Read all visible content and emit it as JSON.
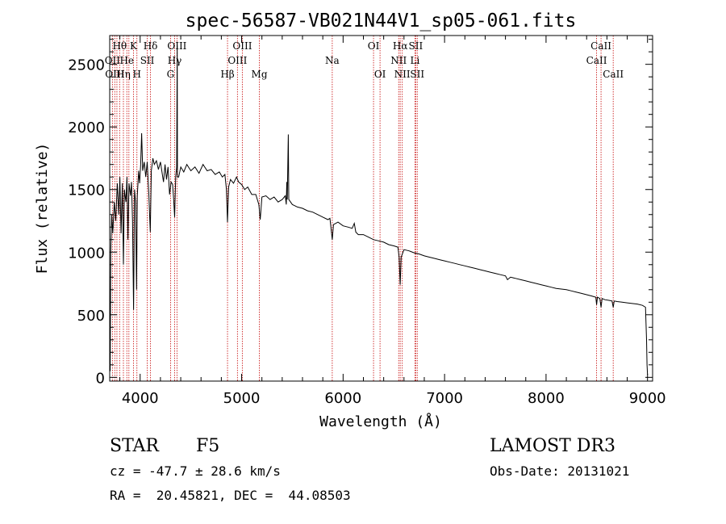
{
  "chart_data": {
    "type": "line",
    "title": "spec-56587-VB021N44V1_sp05-061.fits",
    "xlabel": "Wavelength (Å)",
    "ylabel": "Flux (relative)",
    "xlim": [
      3700,
      9050
    ],
    "ylim": [
      -30,
      2730
    ],
    "xticks": [
      {
        "value": 4000,
        "label": "4000"
      },
      {
        "value": 5000,
        "label": "5000"
      },
      {
        "value": 6000,
        "label": "6000"
      },
      {
        "value": 7000,
        "label": "7000"
      },
      {
        "value": 8000,
        "label": "8000"
      },
      {
        "value": 9000,
        "label": "9000"
      }
    ],
    "yticks": [
      {
        "value": 0,
        "label": "0"
      },
      {
        "value": 500,
        "label": "500"
      },
      {
        "value": 1000,
        "label": "1000"
      },
      {
        "value": 1500,
        "label": "1500"
      },
      {
        "value": 2000,
        "label": "2000"
      },
      {
        "value": 2500,
        "label": "2500"
      }
    ],
    "series": [
      {
        "name": "spectrum",
        "points": [
          [
            3700,
            150
          ],
          [
            3705,
            50
          ],
          [
            3710,
            1000
          ],
          [
            3720,
            1300
          ],
          [
            3730,
            1150
          ],
          [
            3745,
            1400
          ],
          [
            3760,
            1250
          ],
          [
            3775,
            1550
          ],
          [
            3790,
            1300
          ],
          [
            3800,
            1600
          ],
          [
            3812,
            1150
          ],
          [
            3825,
            1550
          ],
          [
            3835,
            900
          ],
          [
            3845,
            1500
          ],
          [
            3860,
            1400
          ],
          [
            3870,
            1600
          ],
          [
            3880,
            1100
          ],
          [
            3890,
            1550
          ],
          [
            3905,
            1450
          ],
          [
            3915,
            1560
          ],
          [
            3925,
            1250
          ],
          [
            3935,
            540
          ],
          [
            3945,
            1500
          ],
          [
            3955,
            1400
          ],
          [
            3965,
            700
          ],
          [
            3972,
            1450
          ],
          [
            3985,
            1650
          ],
          [
            3995,
            1550
          ],
          [
            4005,
            1700
          ],
          [
            4015,
            1950
          ],
          [
            4025,
            1650
          ],
          [
            4040,
            1720
          ],
          [
            4055,
            1600
          ],
          [
            4070,
            1720
          ],
          [
            4085,
            1480
          ],
          [
            4100,
            1160
          ],
          [
            4110,
            1650
          ],
          [
            4125,
            1750
          ],
          [
            4140,
            1700
          ],
          [
            4160,
            1730
          ],
          [
            4180,
            1660
          ],
          [
            4200,
            1720
          ],
          [
            4215,
            1640
          ],
          [
            4230,
            1560
          ],
          [
            4245,
            1700
          ],
          [
            4260,
            1580
          ],
          [
            4275,
            1680
          ],
          [
            4290,
            1460
          ],
          [
            4305,
            1560
          ],
          [
            4320,
            1540
          ],
          [
            4330,
            1420
          ],
          [
            4340,
            1280
          ],
          [
            4350,
            1600
          ],
          [
            4360,
            1680
          ],
          [
            4365,
            2650
          ],
          [
            4368,
            1600
          ],
          [
            4380,
            1600
          ],
          [
            4400,
            1680
          ],
          [
            4430,
            1640
          ],
          [
            4460,
            1700
          ],
          [
            4500,
            1650
          ],
          [
            4540,
            1680
          ],
          [
            4580,
            1630
          ],
          [
            4620,
            1700
          ],
          [
            4660,
            1650
          ],
          [
            4700,
            1660
          ],
          [
            4740,
            1620
          ],
          [
            4780,
            1640
          ],
          [
            4810,
            1600
          ],
          [
            4835,
            1620
          ],
          [
            4850,
            1500
          ],
          [
            4861,
            1240
          ],
          [
            4872,
            1520
          ],
          [
            4890,
            1580
          ],
          [
            4920,
            1550
          ],
          [
            4950,
            1600
          ],
          [
            4970,
            1560
          ],
          [
            5000,
            1540
          ],
          [
            5030,
            1500
          ],
          [
            5060,
            1520
          ],
          [
            5100,
            1460
          ],
          [
            5140,
            1460
          ],
          [
            5170,
            1380
          ],
          [
            5183,
            1260
          ],
          [
            5200,
            1440
          ],
          [
            5240,
            1450
          ],
          [
            5280,
            1420
          ],
          [
            5320,
            1440
          ],
          [
            5360,
            1400
          ],
          [
            5400,
            1420
          ],
          [
            5430,
            1450
          ],
          [
            5440,
            1380
          ],
          [
            5445,
            1560
          ],
          [
            5450,
            1420
          ],
          [
            5460,
            1940
          ],
          [
            5465,
            1420
          ],
          [
            5500,
            1380
          ],
          [
            5550,
            1360
          ],
          [
            5600,
            1350
          ],
          [
            5650,
            1330
          ],
          [
            5700,
            1320
          ],
          [
            5750,
            1300
          ],
          [
            5800,
            1280
          ],
          [
            5850,
            1260
          ],
          [
            5870,
            1270
          ],
          [
            5893,
            1100
          ],
          [
            5905,
            1220
          ],
          [
            5950,
            1240
          ],
          [
            6000,
            1210
          ],
          [
            6050,
            1200
          ],
          [
            6090,
            1190
          ],
          [
            6110,
            1230
          ],
          [
            6125,
            1160
          ],
          [
            6150,
            1140
          ],
          [
            6200,
            1140
          ],
          [
            6250,
            1120
          ],
          [
            6300,
            1100
          ],
          [
            6350,
            1090
          ],
          [
            6400,
            1080
          ],
          [
            6450,
            1060
          ],
          [
            6500,
            1050
          ],
          [
            6540,
            1040
          ],
          [
            6552,
            960
          ],
          [
            6563,
            740
          ],
          [
            6572,
            960
          ],
          [
            6600,
            1020
          ],
          [
            6650,
            1010
          ],
          [
            6700,
            995
          ],
          [
            6750,
            985
          ],
          [
            6800,
            970
          ],
          [
            6850,
            960
          ],
          [
            6900,
            950
          ],
          [
            6950,
            940
          ],
          [
            7000,
            930
          ],
          [
            7050,
            920
          ],
          [
            7100,
            910
          ],
          [
            7150,
            900
          ],
          [
            7200,
            890
          ],
          [
            7250,
            880
          ],
          [
            7300,
            870
          ],
          [
            7350,
            860
          ],
          [
            7400,
            850
          ],
          [
            7450,
            840
          ],
          [
            7500,
            830
          ],
          [
            7550,
            820
          ],
          [
            7600,
            810
          ],
          [
            7620,
            780
          ],
          [
            7650,
            800
          ],
          [
            7700,
            790
          ],
          [
            7750,
            780
          ],
          [
            7800,
            770
          ],
          [
            7850,
            760
          ],
          [
            7900,
            750
          ],
          [
            7950,
            740
          ],
          [
            8000,
            730
          ],
          [
            8050,
            720
          ],
          [
            8100,
            710
          ],
          [
            8150,
            705
          ],
          [
            8200,
            700
          ],
          [
            8250,
            690
          ],
          [
            8300,
            680
          ],
          [
            8350,
            670
          ],
          [
            8400,
            660
          ],
          [
            8450,
            650
          ],
          [
            8490,
            640
          ],
          [
            8498,
            580
          ],
          [
            8506,
            640
          ],
          [
            8530,
            630
          ],
          [
            8542,
            560
          ],
          [
            8552,
            630
          ],
          [
            8580,
            620
          ],
          [
            8620,
            615
          ],
          [
            8650,
            610
          ],
          [
            8662,
            560
          ],
          [
            8672,
            610
          ],
          [
            8700,
            605
          ],
          [
            8750,
            600
          ],
          [
            8800,
            595
          ],
          [
            8850,
            590
          ],
          [
            8900,
            585
          ],
          [
            8950,
            575
          ],
          [
            8980,
            560
          ],
          [
            8990,
            300
          ],
          [
            8995,
            100
          ],
          [
            9000,
            20
          ]
        ]
      }
    ],
    "lines": [
      {
        "wavelength": 3727,
        "label": "OII",
        "row": 1
      },
      {
        "wavelength": 3750,
        "label": "OIII",
        "row": 2
      },
      {
        "wavelength": 3771,
        "label": "",
        "row": 2
      },
      {
        "wavelength": 3798,
        "label": "Hθ",
        "row": 0
      },
      {
        "wavelength": 3835,
        "label": "Hη",
        "row": 2
      },
      {
        "wavelength": 3869,
        "label": "He",
        "row": 1
      },
      {
        "wavelength": 3889,
        "label": "",
        "row": 1
      },
      {
        "wavelength": 3934,
        "label": "K",
        "row": 0
      },
      {
        "wavelength": 3968,
        "label": "H",
        "row": 2
      },
      {
        "wavelength": 4070,
        "label": "SII",
        "row": 1
      },
      {
        "wavelength": 4102,
        "label": "Hδ",
        "row": 0
      },
      {
        "wavelength": 4300,
        "label": "G",
        "row": 2
      },
      {
        "wavelength": 4340,
        "label": "Hγ",
        "row": 1
      },
      {
        "wavelength": 4363,
        "label": "OIII",
        "row": 0
      },
      {
        "wavelength": 4861,
        "label": "Hβ",
        "row": 2
      },
      {
        "wavelength": 4959,
        "label": "OIII",
        "row": 1
      },
      {
        "wavelength": 5007,
        "label": "OIII",
        "row": 0
      },
      {
        "wavelength": 5175,
        "label": "Mg",
        "row": 2
      },
      {
        "wavelength": 5893,
        "label": "Na",
        "row": 1
      },
      {
        "wavelength": 6300,
        "label": "OI",
        "row": 0
      },
      {
        "wavelength": 6364,
        "label": "OI",
        "row": 2
      },
      {
        "wavelength": 6548,
        "label": "NII",
        "row": 1
      },
      {
        "wavelength": 6563,
        "label": "Hα",
        "row": 0
      },
      {
        "wavelength": 6583,
        "label": "NII",
        "row": 2
      },
      {
        "wavelength": 6708,
        "label": "Li",
        "row": 1
      },
      {
        "wavelength": 6716,
        "label": "SII",
        "row": 0
      },
      {
        "wavelength": 6731,
        "label": "SII",
        "row": 2
      },
      {
        "wavelength": 8498,
        "label": "CaII",
        "row": 1
      },
      {
        "wavelength": 8542,
        "label": "CaII",
        "row": 0
      },
      {
        "wavelength": 8662,
        "label": "CaII",
        "row": 2
      }
    ]
  },
  "info": {
    "class_label": "STAR",
    "subclass": "F5",
    "survey": "LAMOST DR3",
    "cz": "cz = -47.7 ± 28.6 km/s",
    "obs_date": "Obs-Date: 20131021",
    "coords": "RA =  20.45821, DEC =  44.08503"
  },
  "colors": {
    "spectrum": "#000000",
    "line_marker": "#cc2222",
    "axis": "#000000"
  }
}
